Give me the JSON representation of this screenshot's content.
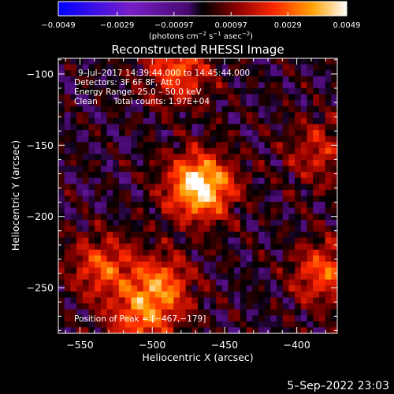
{
  "chart_data": {
    "type": "heatmap",
    "title": "Reconstructed RHESSI Image",
    "xlabel": "Heliocentric X (arcsec)",
    "ylabel": "Heliocentric Y (arcsec)",
    "xlim": [
      -565,
      -372
    ],
    "ylim": [
      -282,
      -89
    ],
    "x_ticks": [
      -550,
      -500,
      -450,
      -400
    ],
    "y_ticks": [
      -100,
      -150,
      -200,
      -250
    ],
    "x_tick_labels": [
      "−550",
      "−500",
      "−450",
      "−400"
    ],
    "y_tick_labels": [
      "−100",
      "−150",
      "−200",
      "−250"
    ],
    "colorbar": {
      "min": -0.0049,
      "max": 0.0049,
      "ticks": [
        -0.0049,
        -0.0029,
        -0.00097,
        0.00097,
        0.0029,
        0.0049
      ],
      "tick_labels": [
        "−0.0049",
        "−0.0029",
        "−0.00097",
        "0.00097",
        "0.0029",
        "0.0049"
      ],
      "unit_base": "(photons cm",
      "unit_e1": "−2",
      "unit_mid1": " s",
      "unit_e2": "−1",
      "unit_mid2": " asec",
      "unit_e3": "−2",
      "unit_end": ")"
    },
    "sources": [
      {
        "x": -467,
        "y": -179,
        "intensity": 1.0
      },
      {
        "x": -495,
        "y": -250,
        "intensity": 0.62
      },
      {
        "x": -380,
        "y": -240,
        "intensity": 0.55
      },
      {
        "x": -535,
        "y": -235,
        "intensity": 0.5
      },
      {
        "x": -482,
        "y": -97,
        "intensity": 0.55
      },
      {
        "x": -510,
        "y": -275,
        "intensity": 0.45
      },
      {
        "x": -385,
        "y": -155,
        "intensity": 0.38
      }
    ],
    "peak": {
      "x": -467,
      "y": -179
    }
  },
  "annotations": {
    "time_range": "9–Jul–2017 14:39:44.000 to 14:45:44.000",
    "detectors": "Detectors: 3F 6F 8F, Att 0",
    "energy": "Energy Range: 25.0 – 50.0 keV",
    "clean": "Clean",
    "counts": "Total counts: 1.97E+04",
    "peak_position": "Position of Peak = [−467,−179]"
  },
  "footer": {
    "timestamp": "5–Sep–2022 23:03"
  },
  "colors": {
    "background": "#000000",
    "text": "#ffffff",
    "colormap_negative": [
      "#0000ff",
      "#6a1ab0",
      "#4a0a6e"
    ],
    "colormap_positive": [
      "#000000",
      "#8a0000",
      "#ff2a00",
      "#ff9900",
      "#ffffff"
    ]
  }
}
